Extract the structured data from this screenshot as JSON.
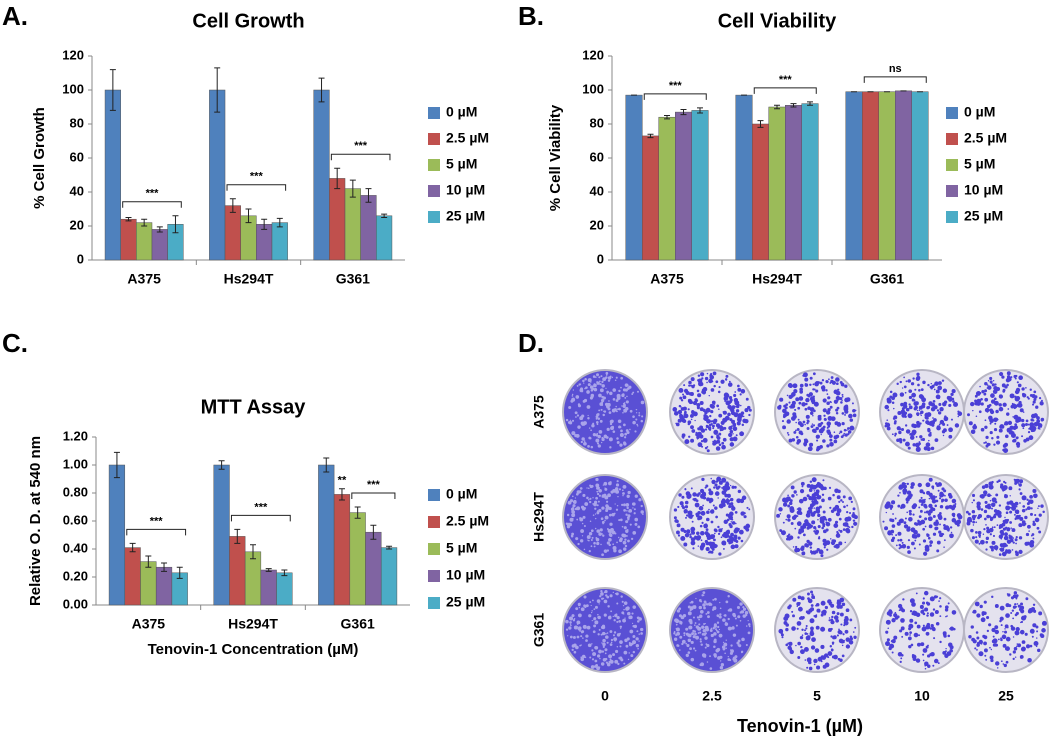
{
  "chart_data": [
    {
      "type": "bar",
      "panel": "A.",
      "title": "Cell Growth",
      "y_label": "% Cell Growth",
      "categories": [
        "A375",
        "Hs294T",
        "G361"
      ],
      "series": [
        {
          "name": "0 µM",
          "color": "#4f81bd",
          "values": [
            100,
            100,
            100
          ],
          "errors": [
            12,
            13,
            7
          ]
        },
        {
          "name": "2.5 µM",
          "color": "#c0504d",
          "values": [
            24,
            32,
            48
          ],
          "errors": [
            1,
            4,
            6
          ]
        },
        {
          "name": "5 µM",
          "color": "#9bbb59",
          "values": [
            22,
            26,
            42
          ],
          "errors": [
            2,
            4,
            5
          ]
        },
        {
          "name": "10 µM",
          "color": "#8064a2",
          "values": [
            18,
            21,
            38
          ],
          "errors": [
            1.5,
            3,
            4
          ]
        },
        {
          "name": "25 µM",
          "color": "#4bacc6",
          "values": [
            21,
            22,
            26
          ],
          "errors": [
            5,
            2.5,
            1
          ]
        }
      ],
      "ylim": [
        0,
        120
      ],
      "yticks": [
        0,
        20,
        40,
        60,
        80,
        100,
        120
      ],
      "grid": false,
      "annotations": [
        {
          "text": "***",
          "category": "A375",
          "from": "2.5 µM",
          "to": "25 µM"
        },
        {
          "text": "***",
          "category": "Hs294T",
          "from": "2.5 µM",
          "to": "25 µM"
        },
        {
          "text": "***",
          "category": "G361",
          "from": "2.5 µM",
          "to": "25 µM"
        }
      ]
    },
    {
      "type": "bar",
      "panel": "B.",
      "title": "Cell Viability",
      "y_label": "% Cell Viability",
      "categories": [
        "A375",
        "Hs294T",
        "G361"
      ],
      "series": [
        {
          "name": "0 µM",
          "color": "#4f81bd",
          "values": [
            97,
            97,
            99
          ],
          "errors": [
            0,
            0,
            0
          ]
        },
        {
          "name": "2.5 µM",
          "color": "#c0504d",
          "values": [
            73,
            80,
            99
          ],
          "errors": [
            1,
            2,
            0
          ]
        },
        {
          "name": "5 µM",
          "color": "#9bbb59",
          "values": [
            84,
            90,
            99
          ],
          "errors": [
            1,
            1,
            0
          ]
        },
        {
          "name": "10 µM",
          "color": "#8064a2",
          "values": [
            87,
            91,
            99.5
          ],
          "errors": [
            1.5,
            1,
            0
          ]
        },
        {
          "name": "25 µM",
          "color": "#4bacc6",
          "values": [
            88,
            92,
            99
          ],
          "errors": [
            1.5,
            1,
            0
          ]
        }
      ],
      "ylim": [
        0,
        120
      ],
      "yticks": [
        0,
        20,
        40,
        60,
        80,
        100,
        120
      ],
      "grid": false,
      "annotations": [
        {
          "text": "***",
          "category": "A375",
          "from": "2.5 µM",
          "to": "25 µM"
        },
        {
          "text": "***",
          "category": "Hs294T",
          "from": "2.5 µM",
          "to": "25 µM"
        },
        {
          "text": "ns",
          "category": "G361",
          "from": "2.5 µM",
          "to": "25 µM"
        }
      ]
    },
    {
      "type": "bar",
      "panel": "C.",
      "title": "MTT Assay",
      "y_label": "Relative O. D. at 540 nm",
      "x_label": "Tenovin-1 Concentration (µM)",
      "categories": [
        "A375",
        "Hs294T",
        "G361"
      ],
      "series": [
        {
          "name": "0 µM",
          "color": "#4f81bd",
          "values": [
            1.0,
            1.0,
            1.0
          ],
          "errors": [
            0.09,
            0.03,
            0.05
          ]
        },
        {
          "name": "2.5 µM",
          "color": "#c0504d",
          "values": [
            0.41,
            0.49,
            0.79
          ],
          "errors": [
            0.03,
            0.05,
            0.04
          ]
        },
        {
          "name": "5 µM",
          "color": "#9bbb59",
          "values": [
            0.31,
            0.38,
            0.66
          ],
          "errors": [
            0.04,
            0.05,
            0.04
          ]
        },
        {
          "name": "10 µM",
          "color": "#8064a2",
          "values": [
            0.27,
            0.25,
            0.52
          ],
          "errors": [
            0.03,
            0.01,
            0.05
          ]
        },
        {
          "name": "25 µM",
          "color": "#4bacc6",
          "values": [
            0.23,
            0.23,
            0.41
          ],
          "errors": [
            0.04,
            0.02,
            0.01
          ]
        }
      ],
      "ylim": [
        0,
        1.2
      ],
      "yticks": [
        {
          "value": 0,
          "label": "0.00"
        },
        {
          "value": 0.2,
          "label": "0.20"
        },
        {
          "value": 0.4,
          "label": "0.40"
        },
        {
          "value": 0.6,
          "label": "0.60"
        },
        {
          "value": 0.8,
          "label": "0.80"
        },
        {
          "value": 1.0,
          "label": "1.00"
        },
        {
          "value": 1.2,
          "label": "1.20"
        }
      ],
      "grid": false,
      "annotations": [
        {
          "text": "***",
          "category": "A375",
          "from": "2.5 µM",
          "to": "25 µM"
        },
        {
          "text": "***",
          "category": "Hs294T",
          "from": "2.5 µM",
          "to": "25 µM"
        },
        {
          "text": "**",
          "category": "G361",
          "from": "2.5 µM",
          "to": "2.5 µM"
        },
        {
          "text": "***",
          "category": "G361",
          "from": "5 µM",
          "to": "25 µM"
        }
      ]
    }
  ],
  "plates": {
    "panel": "D.",
    "rows": [
      "A375",
      "Hs294T",
      "G361"
    ],
    "columns": [
      "0",
      "2.5",
      "5",
      "10",
      "25"
    ],
    "x_label": "Tenovin-1 (µM)"
  }
}
